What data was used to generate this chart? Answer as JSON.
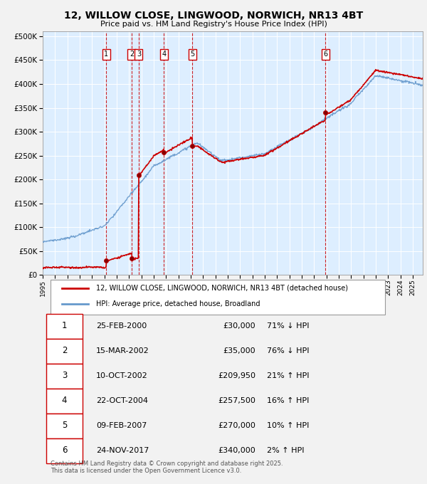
{
  "title": "12, WILLOW CLOSE, LINGWOOD, NORWICH, NR13 4BT",
  "subtitle": "Price paid vs. HM Land Registry's House Price Index (HPI)",
  "ytick_values": [
    0,
    50000,
    100000,
    150000,
    200000,
    250000,
    300000,
    350000,
    400000,
    450000,
    500000
  ],
  "ylim": [
    0,
    510000
  ],
  "xlim_start": 1995.0,
  "xlim_end": 2025.8,
  "chart_bg_color": "#ddeeff",
  "fig_bg_color": "#f2f2f2",
  "grid_color": "#ffffff",
  "legend_label_red": "12, WILLOW CLOSE, LINGWOOD, NORWICH, NR13 4BT (detached house)",
  "legend_label_blue": "HPI: Average price, detached house, Broadland",
  "footer_text": "Contains HM Land Registry data © Crown copyright and database right 2025.\nThis data is licensed under the Open Government Licence v3.0.",
  "transactions": [
    {
      "num": 1,
      "date_label": "25-FEB-2000",
      "price_label": "£30,000",
      "hpi_label": "71% ↓ HPI",
      "year": 2000.15,
      "price": 30000
    },
    {
      "num": 2,
      "date_label": "15-MAR-2002",
      "price_label": "£35,000",
      "hpi_label": "76% ↓ HPI",
      "year": 2002.21,
      "price": 35000
    },
    {
      "num": 3,
      "date_label": "10-OCT-2002",
      "price_label": "£209,950",
      "hpi_label": "21% ↑ HPI",
      "year": 2002.78,
      "price": 209950
    },
    {
      "num": 4,
      "date_label": "22-OCT-2004",
      "price_label": "£257,500",
      "hpi_label": "16% ↑ HPI",
      "year": 2004.82,
      "price": 257500
    },
    {
      "num": 5,
      "date_label": "09-FEB-2007",
      "price_label": "£270,000",
      "hpi_label": "10% ↑ HPI",
      "year": 2007.12,
      "price": 270000
    },
    {
      "num": 6,
      "date_label": "24-NOV-2017",
      "price_label": "£340,000",
      "hpi_label": "2% ↑ HPI",
      "year": 2017.9,
      "price": 340000
    }
  ],
  "red_line_color": "#cc0000",
  "blue_line_color": "#6699cc",
  "vline_color": "#cc0000",
  "box_edge_color": "#cc0000",
  "panel_bg_color": "#ffffff"
}
